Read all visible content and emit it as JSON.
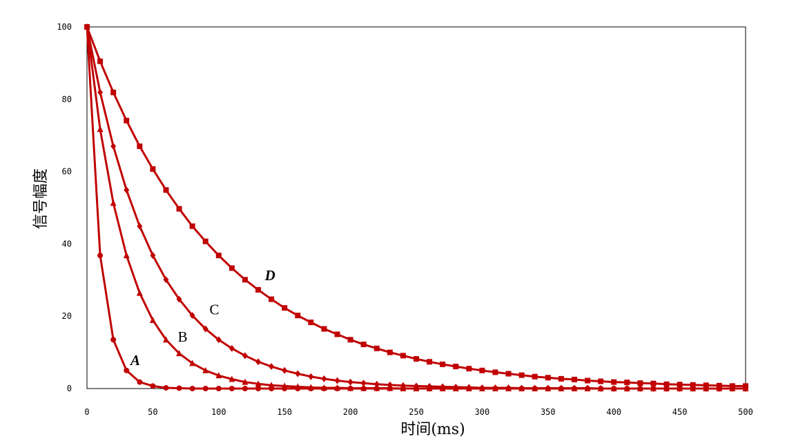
{
  "chart_data": {
    "type": "line",
    "title": "",
    "xlabel": "时间(ms)",
    "ylabel": "信号幅度",
    "xlim": [
      0,
      500
    ],
    "ylim": [
      0,
      100
    ],
    "x_ticks": [
      0,
      50,
      100,
      150,
      200,
      250,
      300,
      350,
      400,
      450,
      500
    ],
    "y_ticks": [
      0,
      20,
      40,
      60,
      80,
      100
    ],
    "grid": false,
    "line_color": "#c00000",
    "x": [
      0,
      10,
      20,
      30,
      40,
      50,
      60,
      70,
      80,
      90,
      100,
      110,
      120,
      130,
      140,
      150,
      160,
      170,
      180,
      190,
      200,
      210,
      220,
      230,
      240,
      250,
      260,
      270,
      280,
      290,
      300,
      310,
      320,
      330,
      340,
      350,
      360,
      370,
      380,
      390,
      400,
      410,
      420,
      430,
      440,
      450,
      460,
      470,
      480,
      490,
      500
    ],
    "series": [
      {
        "name": "A",
        "marker": "circle",
        "values": [
          100,
          36.8,
          13.5,
          5.0,
          1.8,
          0.7,
          0.2,
          0.1,
          0.0,
          0.0,
          0.0,
          0.0,
          0.0,
          0.0,
          0.0,
          0.0,
          0.0,
          0.0,
          0.0,
          0.0,
          0.0,
          0.0,
          0.0,
          0.0,
          0.0,
          0.0,
          0.0,
          0.0,
          0.0,
          0.0,
          0.0,
          0.0,
          0.0,
          0.0,
          0.0,
          0.0,
          0.0,
          0.0,
          0.0,
          0.0,
          0.0,
          0.0,
          0.0,
          0.0,
          0.0,
          0.0,
          0.0,
          0.0,
          0.0,
          0.0,
          0.0
        ]
      },
      {
        "name": "B",
        "marker": "triangle",
        "values": [
          100,
          71.7,
          51.3,
          36.8,
          26.4,
          18.9,
          13.5,
          9.7,
          7.0,
          5.0,
          3.6,
          2.6,
          1.8,
          1.3,
          0.9,
          0.7,
          0.5,
          0.3,
          0.2,
          0.2,
          0.1,
          0.1,
          0.1,
          0.1,
          0.0,
          0.0,
          0.0,
          0.0,
          0.0,
          0.0,
          0.0,
          0.0,
          0.0,
          0.0,
          0.0,
          0.0,
          0.0,
          0.0,
          0.0,
          0.0,
          0.0,
          0.0,
          0.0,
          0.0,
          0.0,
          0.0,
          0.0,
          0.0,
          0.0,
          0.0,
          0.0
        ]
      },
      {
        "name": "C",
        "marker": "diamond",
        "values": [
          100,
          81.9,
          67.0,
          54.9,
          44.9,
          36.8,
          30.1,
          24.7,
          20.2,
          16.5,
          13.5,
          11.1,
          9.1,
          7.4,
          6.1,
          5.0,
          4.1,
          3.3,
          2.7,
          2.2,
          1.8,
          1.5,
          1.2,
          1.0,
          0.8,
          0.7,
          0.6,
          0.5,
          0.4,
          0.3,
          0.2,
          0.2,
          0.2,
          0.1,
          0.1,
          0.1,
          0.1,
          0.1,
          0.1,
          0.0,
          0.0,
          0.0,
          0.0,
          0.0,
          0.0,
          0.0,
          0.0,
          0.0,
          0.0,
          0.0,
          0.0
        ]
      },
      {
        "name": "D",
        "marker": "square",
        "values": [
          100,
          90.5,
          81.9,
          74.1,
          67.0,
          60.7,
          54.9,
          49.7,
          44.9,
          40.7,
          36.8,
          33.3,
          30.1,
          27.3,
          24.7,
          22.3,
          20.2,
          18.3,
          16.5,
          15.0,
          13.5,
          12.2,
          11.1,
          10.0,
          9.1,
          8.2,
          7.4,
          6.7,
          6.1,
          5.5,
          5.0,
          4.5,
          4.1,
          3.7,
          3.3,
          3.0,
          2.7,
          2.5,
          2.2,
          2.0,
          1.8,
          1.7,
          1.5,
          1.4,
          1.2,
          1.1,
          1.0,
          0.9,
          0.8,
          0.7,
          0.7
        ]
      }
    ],
    "annotations": [
      {
        "text": "A",
        "x": 33,
        "y": 6.5,
        "italic": true
      },
      {
        "text": "B",
        "x": 69,
        "y": 13,
        "italic": false
      },
      {
        "text": "C",
        "x": 93,
        "y": 20.5,
        "italic": false
      },
      {
        "text": "D",
        "x": 135,
        "y": 30,
        "italic": true
      }
    ]
  }
}
